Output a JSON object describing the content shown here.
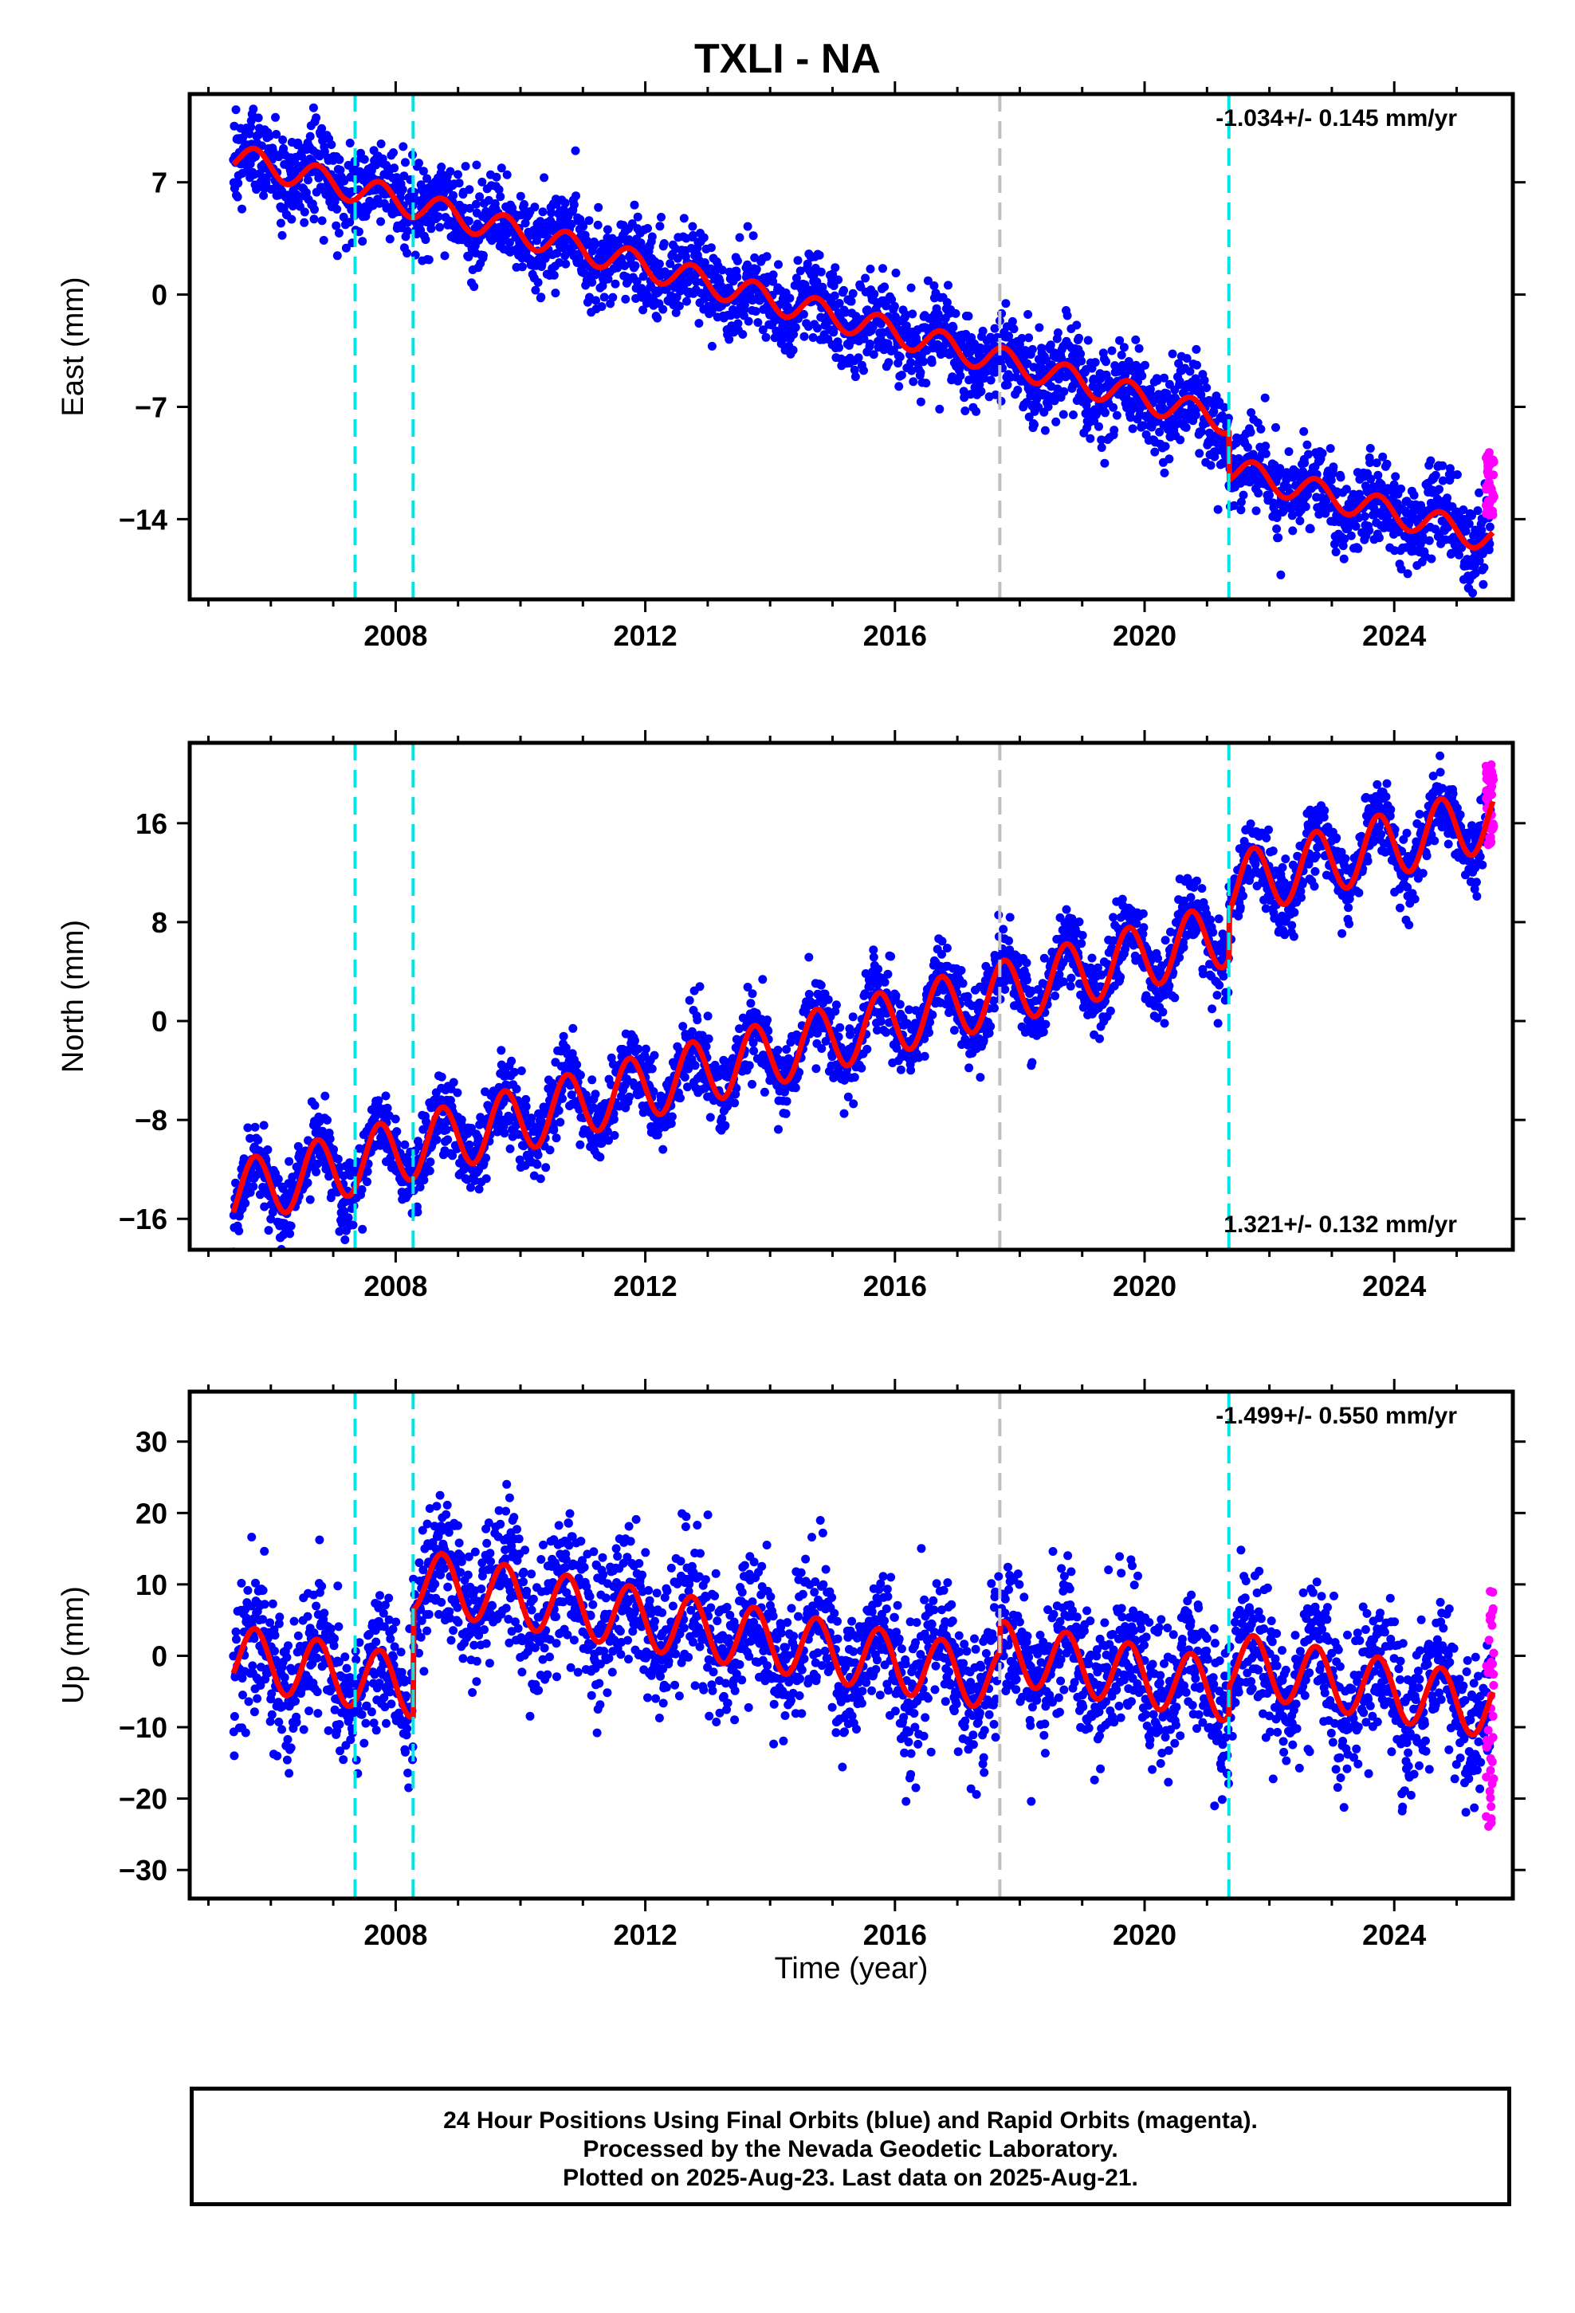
{
  "title": "TXLI - NA",
  "xlabel": "Time (year)",
  "note": [
    "24 Hour Positions Using Final Orbits (blue) and Rapid Orbits (magenta).",
    "Processed by the Nevada Geodetic Laboratory.",
    "Plotted on 2025-Aug-23. Last data on 2025-Aug-21."
  ],
  "colors": {
    "final_orbits": "#0000ff",
    "rapid_orbits": "#ff00ff",
    "model": "#ff0000",
    "equipment_change": "#00e5e5",
    "other_event": "#c0c0c0"
  },
  "chart_data": [
    {
      "type": "scatter",
      "ylabel": "East (mm)",
      "rate": "-1.034+/- 0.145 mm/yr",
      "rate_position": "top-right",
      "xlim": [
        2004.7,
        2025.9
      ],
      "ylim": [
        -19,
        12.5
      ],
      "x_ticks": [
        2008,
        2012,
        2016,
        2020,
        2024
      ],
      "y_ticks": [
        7,
        0,
        -7,
        -14
      ],
      "y_tick_labels": [
        "7",
        "0",
        "−7",
        "−14"
      ],
      "events_cyan": [
        2007.35,
        2008.28,
        2021.35
      ],
      "events_gray": [
        2017.68
      ],
      "model": {
        "start": 2005.4,
        "end": 2025.58,
        "offset": 8.6,
        "slope": -1.034,
        "amplitude": 0.85,
        "steps": [
          {
            "year": 2021.35,
            "size": -3.0
          }
        ]
      },
      "final_end": 2025.55,
      "rapid": {
        "start": 2025.47,
        "end": 2025.6,
        "center": -11.8,
        "spread": 2.0
      }
    },
    {
      "type": "scatter",
      "ylabel": "North (mm)",
      "rate": "1.321+/- 0.132 mm/yr",
      "rate_position": "bottom-right",
      "xlim": [
        2004.7,
        2025.9
      ],
      "ylim": [
        -18.5,
        22.5
      ],
      "x_ticks": [
        2008,
        2012,
        2016,
        2020,
        2024
      ],
      "y_ticks": [
        16,
        8,
        0,
        -8,
        -16
      ],
      "y_tick_labels": [
        "16",
        "8",
        "0",
        "−8",
        "−16"
      ],
      "events_cyan": [
        2007.35,
        2008.28,
        2021.35
      ],
      "events_gray": [
        2017.68
      ],
      "model": {
        "start": 2005.4,
        "end": 2025.58,
        "offset": -14.0,
        "slope": 1.321,
        "amplitude": 2.6,
        "steps": [
          {
            "year": 2021.35,
            "size": 3.8
          }
        ]
      },
      "final_end": 2025.55,
      "rapid": {
        "start": 2025.47,
        "end": 2025.6,
        "center": 17.5,
        "spread": 3.5
      }
    },
    {
      "type": "scatter",
      "ylabel": "Up (mm)",
      "rate": "-1.499+/- 0.550 mm/yr",
      "rate_position": "top-right",
      "xlim": [
        2004.7,
        2025.9
      ],
      "ylim": [
        -34,
        37
      ],
      "x_ticks": [
        2008,
        2012,
        2016,
        2020,
        2024
      ],
      "y_ticks": [
        30,
        20,
        10,
        0,
        -10,
        -20,
        -30
      ],
      "y_tick_labels": [
        "30",
        "20",
        "10",
        "0",
        "−10",
        "−20",
        "−30"
      ],
      "events_cyan": [
        2007.35,
        2008.28,
        2021.35
      ],
      "events_gray": [
        2017.68
      ],
      "model": {
        "start": 2005.4,
        "end": 2025.58,
        "offset": 0.0,
        "slope": -1.499,
        "amplitude": 4.3,
        "steps": [
          {
            "year": 2008.28,
            "size": 15.0
          },
          {
            "year": 2017.68,
            "size": 4.0
          },
          {
            "year": 2021.35,
            "size": 4.0
          }
        ]
      },
      "final_end": 2025.55,
      "rapid": {
        "start": 2025.47,
        "end": 2025.6,
        "center": -7,
        "spread": 18
      }
    }
  ]
}
